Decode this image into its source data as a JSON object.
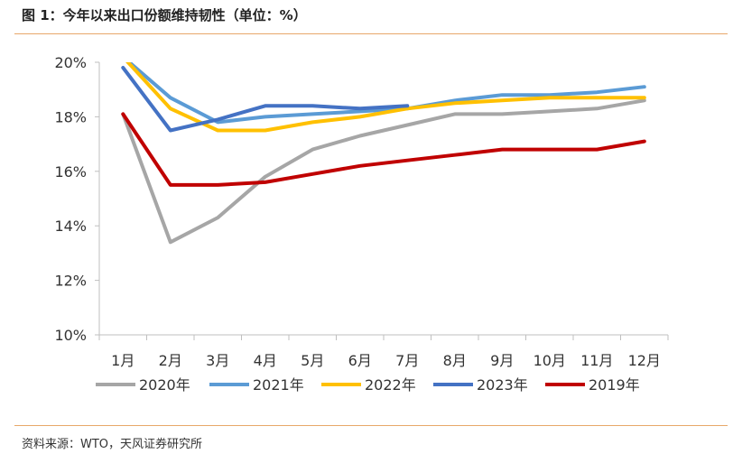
{
  "figure": {
    "title": "图 1：今年以来出口份额维持韧性（单位：%）",
    "source": "资料来源：WTO，天风证券研究所"
  },
  "chart_data": {
    "type": "line",
    "categories": [
      "1月",
      "2月",
      "3月",
      "4月",
      "5月",
      "6月",
      "7月",
      "8月",
      "9月",
      "10月",
      "11月",
      "12月"
    ],
    "y_ticks": [
      "10%",
      "12%",
      "14%",
      "16%",
      "18%",
      "20%"
    ],
    "ylim": [
      10,
      20
    ],
    "grid": false,
    "legend_position": "bottom",
    "series": [
      {
        "name": "2020年",
        "color": "#a6a6a6",
        "values": [
          18.1,
          13.4,
          14.3,
          15.8,
          16.8,
          17.3,
          17.7,
          18.1,
          18.1,
          18.2,
          18.3,
          18.6
        ]
      },
      {
        "name": "2021年",
        "color": "#5b9bd5",
        "values": [
          20.2,
          18.7,
          17.8,
          18.0,
          18.1,
          18.2,
          18.3,
          18.6,
          18.8,
          18.8,
          18.9,
          19.1
        ]
      },
      {
        "name": "2022年",
        "color": "#ffc000",
        "values": [
          20.2,
          18.3,
          17.5,
          17.5,
          17.8,
          18.0,
          18.3,
          18.5,
          18.6,
          18.7,
          18.7,
          18.7
        ]
      },
      {
        "name": "2023年",
        "color": "#4472c4",
        "values": [
          19.8,
          17.5,
          17.9,
          18.4,
          18.4,
          18.3,
          18.4,
          null,
          null,
          null,
          null,
          null
        ]
      },
      {
        "name": "2019年",
        "color": "#c00000",
        "values": [
          18.1,
          15.5,
          15.5,
          15.6,
          15.9,
          16.2,
          16.4,
          16.6,
          16.8,
          16.8,
          16.8,
          17.1
        ]
      }
    ]
  }
}
